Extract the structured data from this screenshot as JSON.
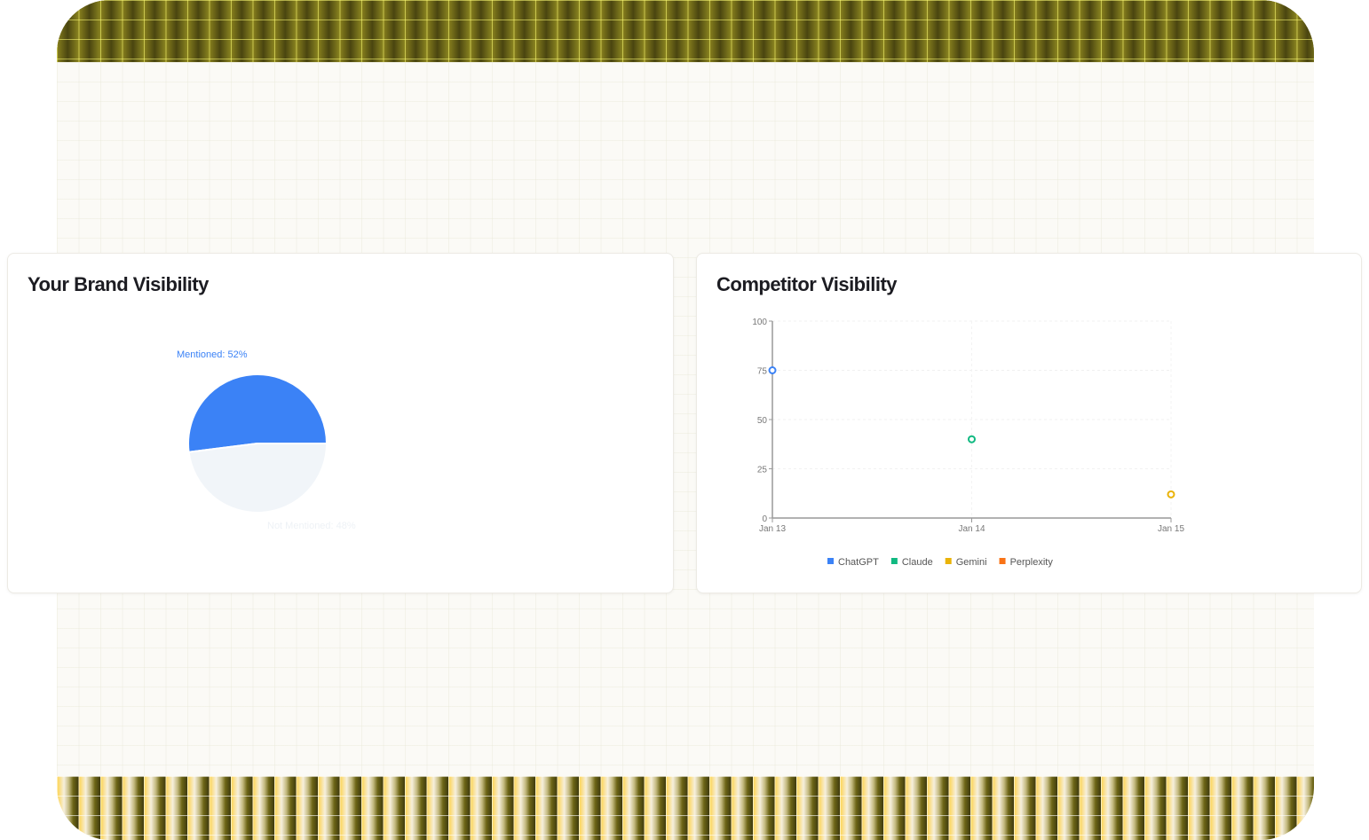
{
  "chart_data": [
    {
      "type": "pie",
      "title": "Your Brand Visibility",
      "slices": [
        {
          "label": "Mentioned: 52%",
          "name": "Mentioned",
          "value": 52,
          "color": "#3b82f6"
        },
        {
          "label": "Not Mentioned: 48%",
          "name": "Not Mentioned",
          "value": 48,
          "color": "#f1f5f9"
        }
      ]
    },
    {
      "type": "scatter",
      "title": "Competitor Visibility",
      "x": [
        "Jan 13",
        "Jan 14",
        "Jan 15"
      ],
      "yticks": [
        0,
        25,
        50,
        75,
        100
      ],
      "ylim": [
        0,
        100
      ],
      "grid": true,
      "legend_position": "bottom",
      "series": [
        {
          "name": "ChatGPT",
          "color": "#3b82f6",
          "points": [
            {
              "x": "Jan 13",
              "y": 75
            }
          ]
        },
        {
          "name": "Claude",
          "color": "#10b981",
          "points": [
            {
              "x": "Jan 14",
              "y": 40
            }
          ]
        },
        {
          "name": "Gemini",
          "color": "#eab308",
          "points": [
            {
              "x": "Jan 15",
              "y": 12
            }
          ]
        },
        {
          "name": "Perplexity",
          "color": "#f97316",
          "points": []
        }
      ]
    }
  ]
}
